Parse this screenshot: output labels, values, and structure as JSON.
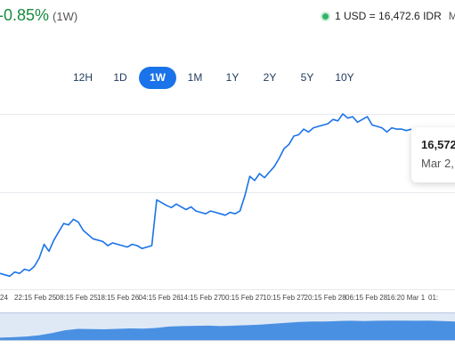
{
  "header": {
    "change": "-0.85%",
    "change_period": "(1W)",
    "rate_text": "1 USD = 16,472.6 IDR",
    "rate_suffix": "M",
    "accent_color": "#1a73e8",
    "positive_color": "#1a8a3f"
  },
  "tabs": [
    {
      "label": "12H",
      "active": false
    },
    {
      "label": "1D",
      "active": false
    },
    {
      "label": "1W",
      "active": true
    },
    {
      "label": "1M",
      "active": false
    },
    {
      "label": "1Y",
      "active": false
    },
    {
      "label": "2Y",
      "active": false
    },
    {
      "label": "5Y",
      "active": false
    },
    {
      "label": "10Y",
      "active": false
    }
  ],
  "tooltip": {
    "value": "16,572",
    "date": "Mar 2,"
  },
  "chart_data": {
    "type": "line",
    "x_tick_labels": [
      "24",
      "22:15 Feb 25",
      "08:15 Feb 25",
      "18:15 Feb 26",
      "04:15 Feb 26",
      "14:15 Feb 27",
      "00:15 Feb 27",
      "10:15 Feb 27",
      "20:15 Feb 28",
      "06:15 Feb 28",
      "16:20 Mar 1",
      "01:"
    ],
    "series": [
      {
        "color": "#1a73e8",
        "values": [
          16240,
          16238,
          16236,
          16242,
          16240,
          16246,
          16244,
          16250,
          16262,
          16282,
          16272,
          16288,
          16300,
          16312,
          16310,
          16318,
          16314,
          16302,
          16296,
          16290,
          16288,
          16286,
          16280,
          16284,
          16282,
          16280,
          16278,
          16282,
          16280,
          16276,
          16278,
          16280,
          16346,
          16342,
          16338,
          16335,
          16340,
          16336,
          16332,
          16336,
          16330,
          16328,
          16326,
          16330,
          16328,
          16326,
          16324,
          16328,
          16326,
          16330,
          16352,
          16380,
          16374,
          16384,
          16378,
          16386,
          16394,
          16406,
          16420,
          16426,
          16438,
          16440,
          16448,
          16444,
          16450,
          16452,
          16454,
          16456,
          16462,
          16460,
          16470,
          16464,
          16466,
          16458,
          16462,
          16466,
          16454,
          16452,
          16450,
          16444,
          16450,
          16448,
          16448,
          16446,
          16448
        ]
      }
    ],
    "grid": true,
    "legend": "none"
  },
  "navigator": {
    "values": [
      0.1,
      0.12,
      0.15,
      0.2,
      0.3,
      0.42,
      0.48,
      0.47,
      0.46,
      0.48,
      0.5,
      0.49,
      0.52,
      0.58,
      0.6,
      0.61,
      0.62,
      0.6,
      0.62,
      0.64,
      0.66,
      0.7,
      0.74,
      0.78,
      0.8,
      0.8,
      0.82,
      0.83,
      0.82,
      0.83,
      0.84,
      0.84,
      0.83,
      0.84,
      0.82,
      0.8
    ],
    "color": "#4a90e2"
  }
}
